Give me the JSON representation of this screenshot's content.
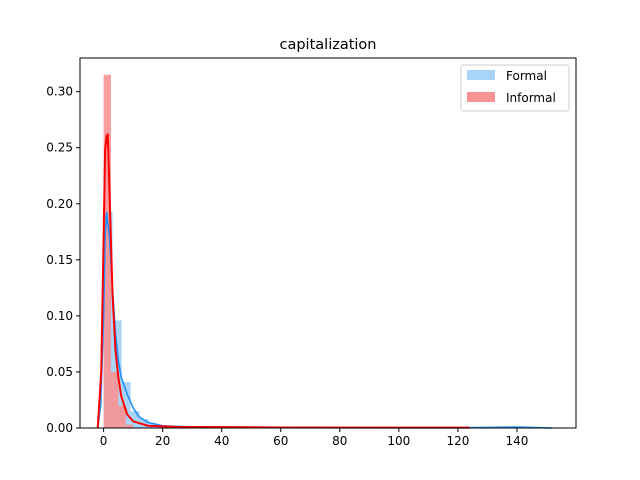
{
  "chart_data": {
    "type": "histogram",
    "title": "capitalization",
    "xlabel": "",
    "ylabel": "",
    "xlim": [
      -8,
      160
    ],
    "ylim": [
      0,
      0.33
    ],
    "x_ticks": [
      0,
      20,
      40,
      60,
      80,
      100,
      120,
      140
    ],
    "y_ticks": [
      0.0,
      0.05,
      0.1,
      0.15,
      0.2,
      0.25,
      0.3
    ],
    "y_tick_labels": [
      "0.00",
      "0.05",
      "0.10",
      "0.15",
      "0.20",
      "0.25",
      "0.30"
    ],
    "legend_position": "top-right",
    "grid": false,
    "series": [
      {
        "name": "Formal",
        "bar_color": "#a8d4fa",
        "line_color": "#1e90ff",
        "bin_width": 3.04,
        "bins": [
          {
            "x0": 0.0,
            "h": 0.193
          },
          {
            "x0": 3.04,
            "h": 0.096
          },
          {
            "x0": 6.08,
            "h": 0.041
          },
          {
            "x0": 9.12,
            "h": 0.015
          },
          {
            "x0": 12.16,
            "h": 0.008
          },
          {
            "x0": 15.2,
            "h": 0.004
          },
          {
            "x0": 18.24,
            "h": 0.002
          },
          {
            "x0": 21.28,
            "h": 0.001
          }
        ],
        "kde": [
          [
            -2,
            0.0
          ],
          [
            -1,
            0.02
          ],
          [
            0,
            0.1
          ],
          [
            0.5,
            0.17
          ],
          [
            1,
            0.192
          ],
          [
            2,
            0.17
          ],
          [
            3,
            0.125
          ],
          [
            4,
            0.085
          ],
          [
            5,
            0.06
          ],
          [
            6,
            0.045
          ],
          [
            8,
            0.03
          ],
          [
            10,
            0.018
          ],
          [
            12,
            0.01
          ],
          [
            15,
            0.005
          ],
          [
            20,
            0.002
          ],
          [
            30,
            0.001
          ],
          [
            60,
            0.0003
          ],
          [
            120,
            0.0002
          ],
          [
            140,
            0.0008
          ],
          [
            152,
            0.0
          ]
        ]
      },
      {
        "name": "Informal",
        "bar_color": "#f89393",
        "line_color": "#ff0000",
        "bin_width": 2.5,
        "bins": [
          {
            "x0": 0.0,
            "h": 0.315
          },
          {
            "x0": 2.5,
            "h": 0.05
          },
          {
            "x0": 5.0,
            "h": 0.02
          },
          {
            "x0": 7.5,
            "h": 0.003
          },
          {
            "x0": 25.0,
            "h": 0.001
          }
        ],
        "kde": [
          [
            -2,
            0.0
          ],
          [
            -0.8,
            0.05
          ],
          [
            0,
            0.17
          ],
          [
            0.5,
            0.248
          ],
          [
            1,
            0.26
          ],
          [
            1.4,
            0.262
          ],
          [
            2,
            0.21
          ],
          [
            3,
            0.12
          ],
          [
            4,
            0.07
          ],
          [
            5,
            0.045
          ],
          [
            6,
            0.028
          ],
          [
            8,
            0.012
          ],
          [
            10,
            0.006
          ],
          [
            15,
            0.002
          ],
          [
            25,
            0.001
          ],
          [
            60,
            0.0005
          ],
          [
            100,
            0.0003
          ],
          [
            124,
            0.0003
          ]
        ]
      }
    ]
  }
}
